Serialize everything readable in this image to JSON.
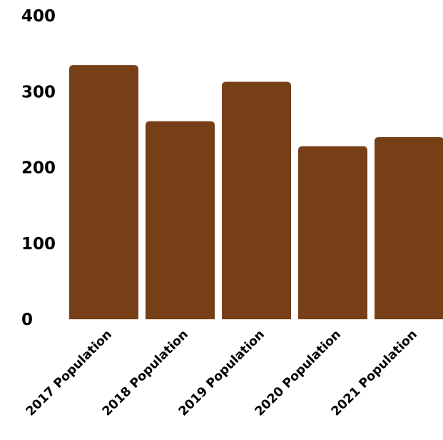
{
  "colors": {
    "bar": "#763f17",
    "background": "#ffffff",
    "text": "#000000"
  },
  "chart_data": {
    "type": "bar",
    "title": "",
    "xlabel": "",
    "ylabel": "",
    "categories": [
      "2017 Population",
      "2018 Population",
      "2019 Population",
      "2020 Population",
      "2021 Population"
    ],
    "values": [
      335,
      261,
      313,
      228,
      240
    ],
    "ylim": [
      0,
      400
    ],
    "yticks": [
      0,
      100,
      200,
      300,
      400
    ],
    "ytick_labels": [
      "0",
      "100",
      "200",
      "300",
      "400"
    ],
    "grid": false,
    "legend": "none"
  }
}
